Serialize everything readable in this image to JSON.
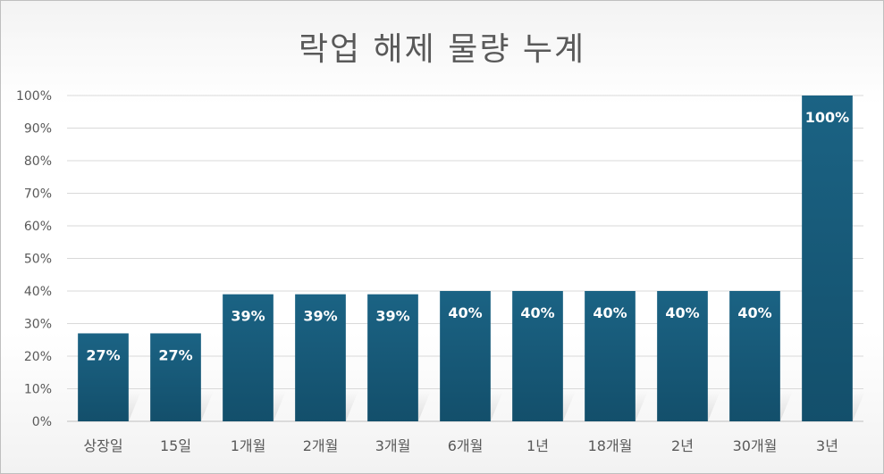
{
  "chart_data": {
    "type": "bar",
    "title": "락업 해제 물량 누계",
    "xlabel": "",
    "ylabel": "",
    "categories": [
      "상장일",
      "15일",
      "1개월",
      "2개월",
      "3개월",
      "6개월",
      "1년",
      "18개월",
      "2년",
      "30개월",
      "3년"
    ],
    "values": [
      27,
      27,
      39,
      39,
      39,
      40,
      40,
      40,
      40,
      40,
      100
    ],
    "data_labels": [
      "27%",
      "27%",
      "39%",
      "39%",
      "39%",
      "40%",
      "40%",
      "40%",
      "40%",
      "40%",
      "100%"
    ],
    "yticks": [
      "0%",
      "10%",
      "20%",
      "30%",
      "40%",
      "50%",
      "60%",
      "70%",
      "80%",
      "90%",
      "100%"
    ],
    "ylim": [
      0,
      100
    ],
    "grid": true,
    "legend": "none",
    "bar_color": "#175a78",
    "bar_color_light": "#1a6283"
  }
}
